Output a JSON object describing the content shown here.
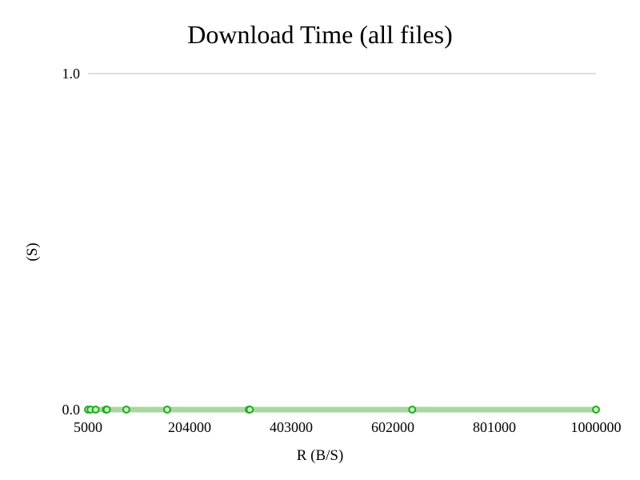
{
  "chart_data": {
    "type": "line",
    "title": "Download Time (all files)",
    "xlabel": "R (B/S)",
    "ylabel": "(S)",
    "xlim": [
      5000,
      1000000
    ],
    "ylim": [
      0.0,
      1.0
    ],
    "x_ticks": [
      "5000",
      "204000",
      "403000",
      "602000",
      "801000",
      "1000000"
    ],
    "y_ticks": [
      "0.0",
      "1.0"
    ],
    "grid": true,
    "series": [
      {
        "color": "#a8d8a0",
        "marker_color": "#22aa22",
        "points": [
          {
            "x": 5000,
            "y": 0.0
          },
          {
            "x": 10000,
            "y": 0.0
          },
          {
            "x": 20000,
            "y": 0.0
          },
          {
            "x": 40000,
            "y": 0.0
          },
          {
            "x": 42000,
            "y": 0.0
          },
          {
            "x": 80000,
            "y": 0.0
          },
          {
            "x": 160000,
            "y": 0.0
          },
          {
            "x": 320000,
            "y": 0.0
          },
          {
            "x": 322000,
            "y": 0.0
          },
          {
            "x": 640000,
            "y": 0.0
          },
          {
            "x": 1000000,
            "y": 0.0
          }
        ]
      }
    ]
  }
}
